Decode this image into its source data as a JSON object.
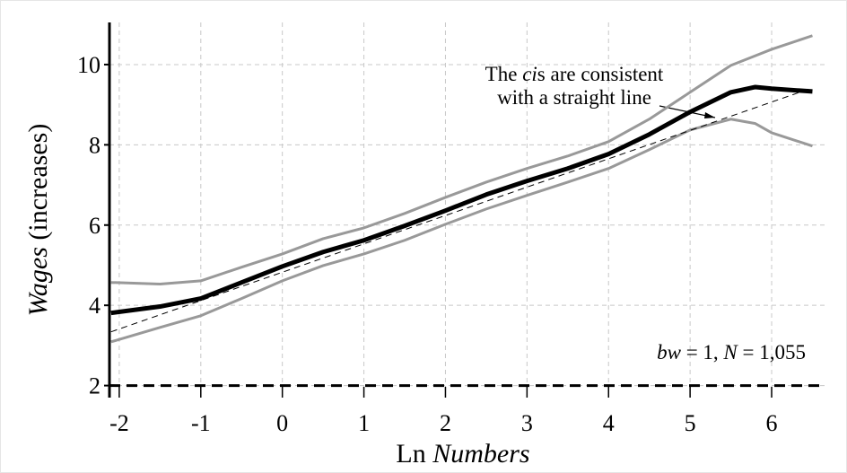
{
  "chart_data": {
    "type": "line",
    "xlabel": [
      {
        "text": "Ln "
      },
      {
        "text": "Numbers",
        "italic": true
      }
    ],
    "ylabel": [
      {
        "text": "Wages",
        "italic": true
      },
      {
        "text": " (increases)"
      }
    ],
    "annotations": [
      {
        "lines": [
          [
            {
              "text": "The "
            },
            {
              "text": "ci",
              "italic": true
            },
            {
              "text": "s are consistent"
            }
          ],
          [
            {
              "text": "with a straight line"
            }
          ]
        ]
      },
      {
        "lines": [
          [
            {
              "text": "bw",
              "italic": true
            },
            {
              "text": " = 1, "
            },
            {
              "text": "N",
              "italic": true
            },
            {
              "text": " = 1,055"
            }
          ]
        ]
      }
    ],
    "x": [
      -2.1,
      -1.5,
      -1,
      -0.5,
      0,
      0.5,
      1,
      1.5,
      2,
      2.5,
      3,
      3.5,
      4,
      4.5,
      5,
      5.5,
      5.8,
      6,
      6.5
    ],
    "series": [
      {
        "color": "#999999",
        "width": 3,
        "values": [
          4.57,
          4.53,
          4.61,
          4.95,
          5.28,
          5.66,
          5.93,
          6.29,
          6.69,
          7.07,
          7.41,
          7.72,
          8.08,
          8.64,
          9.31,
          9.98,
          10.22,
          10.38,
          10.72
        ]
      },
      {
        "color": "#999999",
        "width": 3,
        "values": [
          3.09,
          3.45,
          3.74,
          4.17,
          4.61,
          4.99,
          5.28,
          5.62,
          6.02,
          6.4,
          6.74,
          7.07,
          7.41,
          7.88,
          8.37,
          8.64,
          8.53,
          8.3,
          7.97
        ]
      },
      {
        "color": "#000000",
        "width": 5,
        "values": [
          3.81,
          3.97,
          4.17,
          4.57,
          4.97,
          5.33,
          5.62,
          5.98,
          6.36,
          6.76,
          7.1,
          7.41,
          7.77,
          8.26,
          8.82,
          9.31,
          9.44,
          9.4,
          9.33
        ]
      },
      {
        "color": "#000000",
        "width": 1,
        "dash": "7,5",
        "x": [
          -2.1,
          6.5
        ],
        "values": [
          3.34,
          9.42
        ]
      },
      {
        "color": "#000000",
        "width": 3,
        "dash": "12,7",
        "x": [
          -2.12,
          6.66
        ],
        "values": [
          2,
          2
        ]
      }
    ],
    "xlim": [
      -2.12,
      6.66
    ],
    "ylim": [
      1.7,
      11.05
    ],
    "xticks": [
      -2,
      -1,
      0,
      1,
      2,
      3,
      4,
      5,
      6
    ],
    "yticks": [
      2,
      4,
      6,
      8,
      10
    ],
    "grid": true
  }
}
